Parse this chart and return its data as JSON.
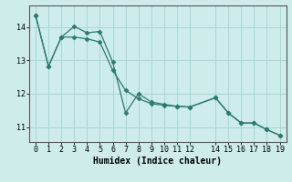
{
  "line1_x": [
    0,
    1,
    2,
    3,
    4,
    5,
    6,
    7,
    8,
    9,
    10,
    11,
    12,
    14,
    15,
    16,
    17,
    18,
    19
  ],
  "line1_y": [
    14.35,
    12.82,
    13.7,
    14.02,
    13.83,
    13.87,
    12.95,
    11.42,
    12.0,
    11.75,
    11.68,
    11.62,
    11.6,
    11.88,
    11.42,
    11.12,
    11.12,
    10.92,
    10.75
  ],
  "line2_x": [
    0,
    1,
    2,
    3,
    4,
    5,
    6,
    7,
    8,
    9,
    10,
    11,
    12,
    14,
    15,
    16,
    17,
    18,
    19
  ],
  "line2_y": [
    14.35,
    12.82,
    13.7,
    13.7,
    13.65,
    13.55,
    12.7,
    12.1,
    11.85,
    11.7,
    11.65,
    11.62,
    11.6,
    11.88,
    11.42,
    11.12,
    11.12,
    10.92,
    10.75
  ],
  "line_color": "#2d7a6e",
  "bg_color": "#cdecea",
  "grid_color": "#a8d8d4",
  "xlabel": "Humidex (Indice chaleur)",
  "xlim": [
    -0.5,
    19.5
  ],
  "ylim": [
    10.55,
    14.65
  ],
  "yticks": [
    11,
    12,
    13,
    14
  ],
  "xticks": [
    0,
    1,
    2,
    3,
    4,
    5,
    6,
    7,
    8,
    9,
    10,
    11,
    12,
    14,
    15,
    16,
    17,
    18,
    19
  ],
  "xlabel_fontsize": 7.0,
  "tick_fontsize": 6.0
}
